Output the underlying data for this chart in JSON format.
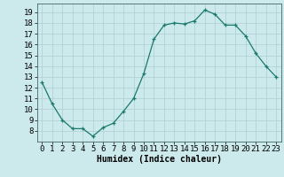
{
  "x": [
    0,
    1,
    2,
    3,
    4,
    5,
    6,
    7,
    8,
    9,
    10,
    11,
    12,
    13,
    14,
    15,
    16,
    17,
    18,
    19,
    20,
    21,
    22,
    23
  ],
  "y": [
    12.5,
    10.5,
    9.0,
    8.2,
    8.2,
    7.5,
    8.3,
    8.7,
    9.8,
    11.0,
    13.3,
    16.5,
    17.8,
    18.0,
    17.9,
    18.2,
    19.2,
    18.8,
    17.8,
    17.8,
    16.8,
    15.2,
    14.0,
    13.0
  ],
  "xlim": [
    -0.5,
    23.5
  ],
  "ylim": [
    7.0,
    19.8
  ],
  "yticks": [
    8,
    9,
    10,
    11,
    12,
    13,
    14,
    15,
    16,
    17,
    18,
    19
  ],
  "xticks": [
    0,
    1,
    2,
    3,
    4,
    5,
    6,
    7,
    8,
    9,
    10,
    11,
    12,
    13,
    14,
    15,
    16,
    17,
    18,
    19,
    20,
    21,
    22,
    23
  ],
  "xlabel": "Humidex (Indice chaleur)",
  "line_color": "#1a7a6e",
  "marker_color": "#1a7a6e",
  "bg_color": "#cce9ec",
  "grid_color": "#aecfd4",
  "xlabel_fontsize": 7,
  "tick_fontsize": 6.5
}
